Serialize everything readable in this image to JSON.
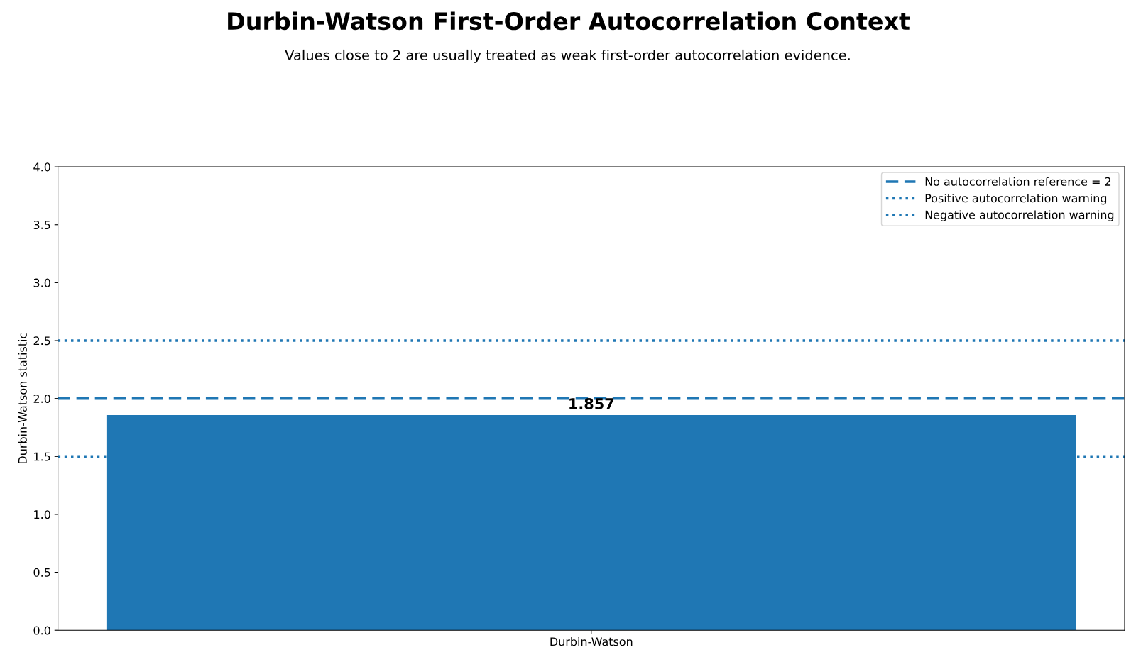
{
  "chart_data": {
    "type": "bar",
    "title": "Durbin-Watson First-Order Autocorrelation Context",
    "subtitle": "Values close to 2 are usually treated as weak first-order autocorrelation evidence.",
    "ylabel": "Durbin-Watson statistic",
    "categories": [
      "Durbin-Watson"
    ],
    "values": [
      1.857
    ],
    "color": "#1f77b4",
    "data_labels": true,
    "ylim": [
      0,
      4
    ],
    "yticks": [
      {
        "value": 0,
        "label": "0.0"
      },
      {
        "value": 0.5,
        "label": "0.5"
      },
      {
        "value": 1,
        "label": "1.0"
      },
      {
        "value": 1.5,
        "label": "1.5"
      },
      {
        "value": 2,
        "label": "2.0"
      },
      {
        "value": 2.5,
        "label": "2.5"
      },
      {
        "value": 3,
        "label": "3.0"
      },
      {
        "value": 3.5,
        "label": "3.5"
      },
      {
        "value": 4,
        "label": "4.0"
      }
    ],
    "ref_lines": [
      {
        "axis": "y",
        "value": 2,
        "label": "No autocorrelation reference = 2",
        "color": "#1f77b4",
        "line_style": "dashed"
      },
      {
        "axis": "y",
        "value": 1.5,
        "label": "Positive autocorrelation warning",
        "color": "#1f77b4",
        "line_style": "dotted"
      },
      {
        "axis": "y",
        "value": 2.5,
        "label": "Negative autocorrelation warning",
        "color": "#1f77b4",
        "line_style": "dotted"
      }
    ],
    "legend": "top right",
    "grid": false
  }
}
